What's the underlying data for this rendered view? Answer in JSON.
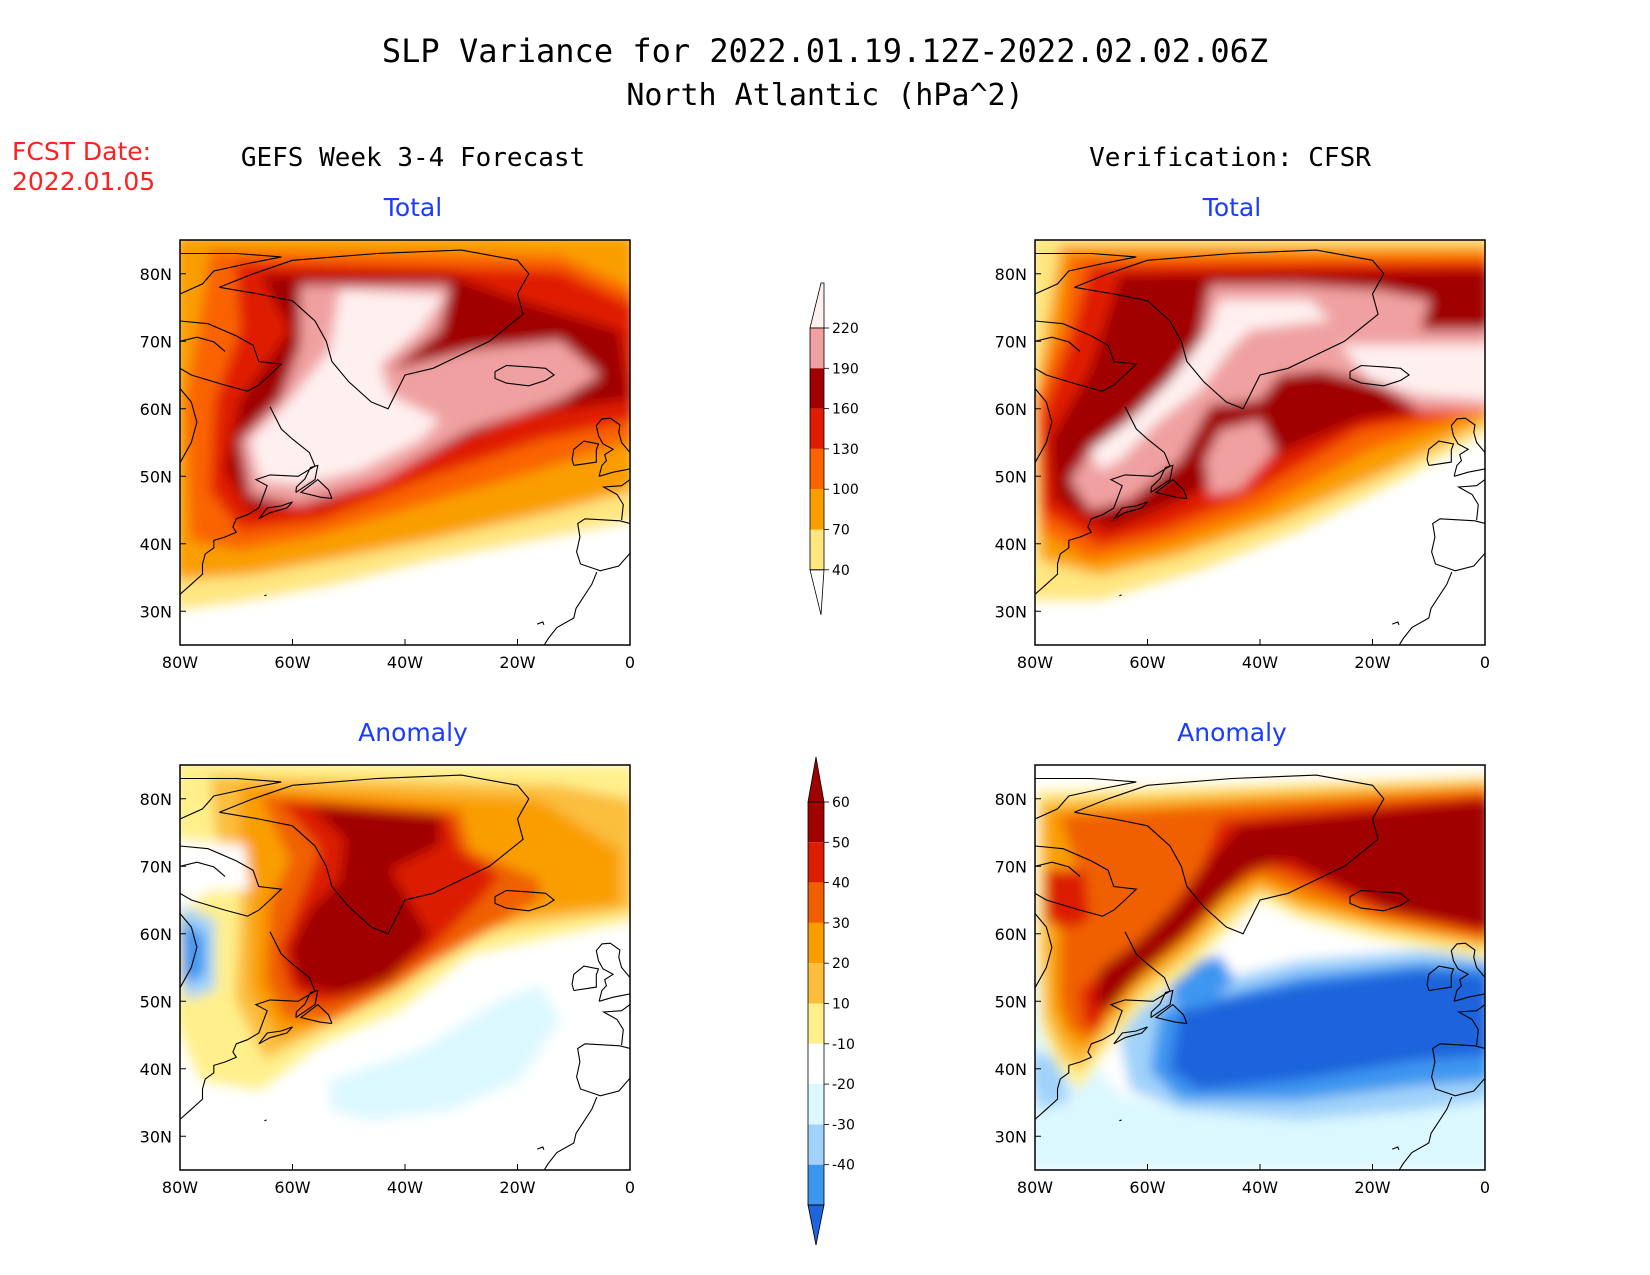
{
  "title_line1": "SLP Variance for 2022.01.19.12Z-2022.02.02.06Z",
  "title_line2": "North Atlantic (hPa^2)",
  "fcst_label": "FCST Date:",
  "fcst_date": "2022.01.05",
  "left_header": "GEFS Week 3-4 Forecast",
  "right_header": "Verification: CFSR",
  "panels": [
    {
      "id": "fcst-total",
      "subtitle": "Total"
    },
    {
      "id": "cfsr-total",
      "subtitle": "Total"
    },
    {
      "id": "fcst-anomaly",
      "subtitle": "Anomaly"
    },
    {
      "id": "cfsr-anomaly",
      "subtitle": "Anomaly"
    }
  ],
  "x_ticks": [
    "80W",
    "60W",
    "40W",
    "20W",
    "0"
  ],
  "y_ticks": [
    "80N",
    "70N",
    "60N",
    "50N",
    "40N",
    "30N"
  ],
  "total_colorbar": {
    "labels": [
      "220",
      "190",
      "160",
      "130",
      "100",
      "70",
      "40"
    ],
    "colors": [
      "#fff0f0",
      "#f0a0a0",
      "#a00000",
      "#e01c00",
      "#fa6400",
      "#fa9e00",
      "#ffe680"
    ]
  },
  "anomaly_colorbar": {
    "labels": [
      "60",
      "50",
      "40",
      "30",
      "20",
      "10",
      "-10",
      "-20",
      "-30",
      "-40"
    ],
    "colors": [
      "#a00000",
      "#dc1e00",
      "#f06000",
      "#fa9e00",
      "#fbbe3c",
      "#fff08c",
      "#ffffff",
      "#dcf8ff",
      "#a0d2fa",
      "#3c96f0",
      "#1e64dc"
    ]
  }
}
